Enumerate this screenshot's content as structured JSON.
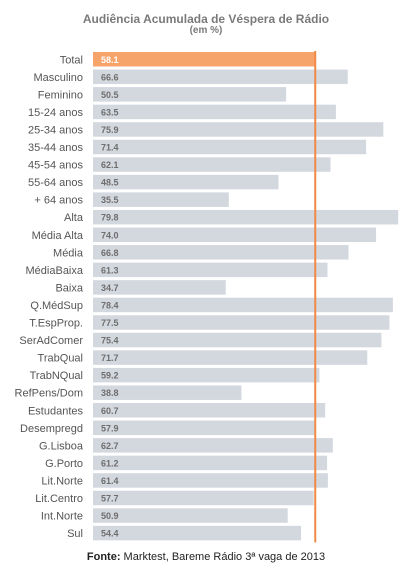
{
  "chart_data": {
    "type": "bar",
    "orientation": "horizontal",
    "title": "Audiência Acumulada de Véspera de Rádio",
    "subtitle": "(em %)",
    "xlim": [
      0,
      80
    ],
    "reference_category": "Total",
    "categories": [
      "Total",
      "Masculino",
      "Feminino",
      "15-24 anos",
      "25-34 anos",
      "35-44 anos",
      "45-54 anos",
      "55-64 anos",
      "+ 64  anos",
      "Alta",
      "Média Alta",
      "Média",
      "MédiaBaixa",
      "Baixa",
      "Q.MédSup",
      "T.EspProp.",
      "SerAdComer",
      "TrabQual",
      "TrabNQual",
      "RefPens/Dom",
      "Estudantes",
      "Desempregd",
      "G.Lisboa",
      "G.Porto",
      "Lit.Norte",
      "Lit.Centro",
      "Int.Norte",
      "Sul"
    ],
    "values": [
      58.1,
      66.6,
      50.5,
      63.5,
      75.9,
      71.4,
      62.1,
      48.5,
      35.5,
      79.8,
      74.0,
      66.8,
      61.3,
      34.7,
      78.4,
      77.5,
      75.4,
      71.7,
      59.2,
      38.8,
      60.7,
      57.9,
      62.7,
      61.2,
      61.4,
      57.7,
      50.9,
      54.4
    ],
    "value_labels": [
      "58.1",
      "66.6",
      "50.5",
      "63.5",
      "75.9",
      "71.4",
      "62.1",
      "48.5",
      "35.5",
      "79.8",
      "74.0",
      "66.8",
      "61.3",
      "34.7",
      "78.4",
      "77.5",
      "75.4",
      "71.7",
      "59.2",
      "38.8",
      "60.7",
      "57.9",
      "62.7",
      "61.2",
      "61.4",
      "57.7",
      "50.9",
      "54.4"
    ],
    "colors": {
      "bar": "#d3d7de",
      "highlight": "#f7a46b",
      "reference_line": "#f08a46",
      "value_text": "#6e6e6e",
      "highlight_text": "#ffffff"
    }
  },
  "footnote": {
    "label": "Fonte:",
    "text": " Marktest, Bareme Rádio 3ª vaga de 2013"
  }
}
